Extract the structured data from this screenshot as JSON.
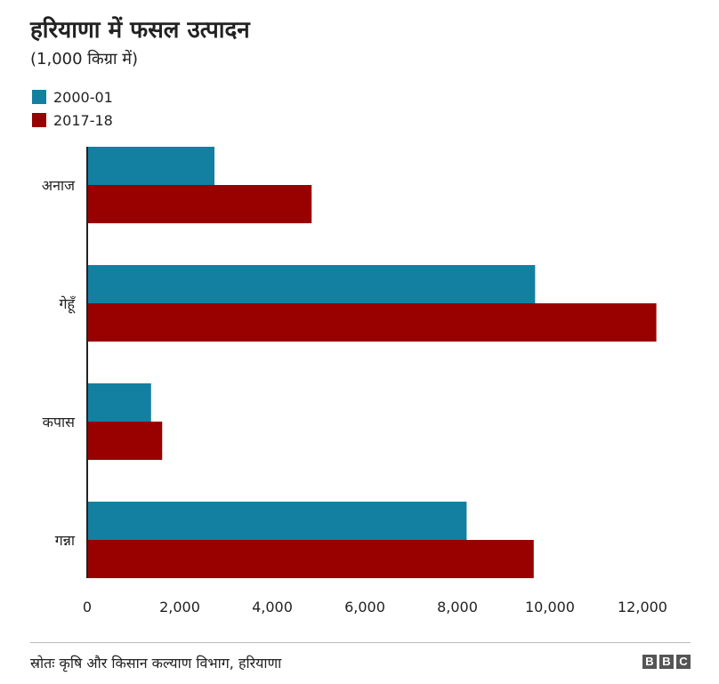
{
  "chart_data": {
    "type": "bar",
    "orientation": "horizontal",
    "title": "हरियाणा में फसल उत्पादन",
    "subtitle": "(1,000 किग्रा में)",
    "categories": [
      "अनाज",
      "गेहूँ",
      "कपास",
      "गन्ना"
    ],
    "series": [
      {
        "name": "2000-01",
        "color": "#1380a1",
        "values": [
          2750,
          9680,
          1380,
          8200
        ]
      },
      {
        "name": "2017-18",
        "color": "#990000",
        "values": [
          4850,
          12300,
          1620,
          9650
        ]
      }
    ],
    "xlim": [
      0,
      12000
    ],
    "ticks": [
      {
        "value": 0,
        "label": "0"
      },
      {
        "value": 2000,
        "label": "2,000"
      },
      {
        "value": 4000,
        "label": "4,000"
      },
      {
        "value": 6000,
        "label": "6,000"
      },
      {
        "value": 8000,
        "label": "8,000"
      },
      {
        "value": 10000,
        "label": "10,000"
      },
      {
        "value": 12000,
        "label": "12,000"
      }
    ],
    "legend_position": "top-left",
    "grid": false
  },
  "source": "स्रोतः कृषि और किसान कल्याण विभाग, हरियाणा",
  "logo": [
    "B",
    "B",
    "C"
  ]
}
